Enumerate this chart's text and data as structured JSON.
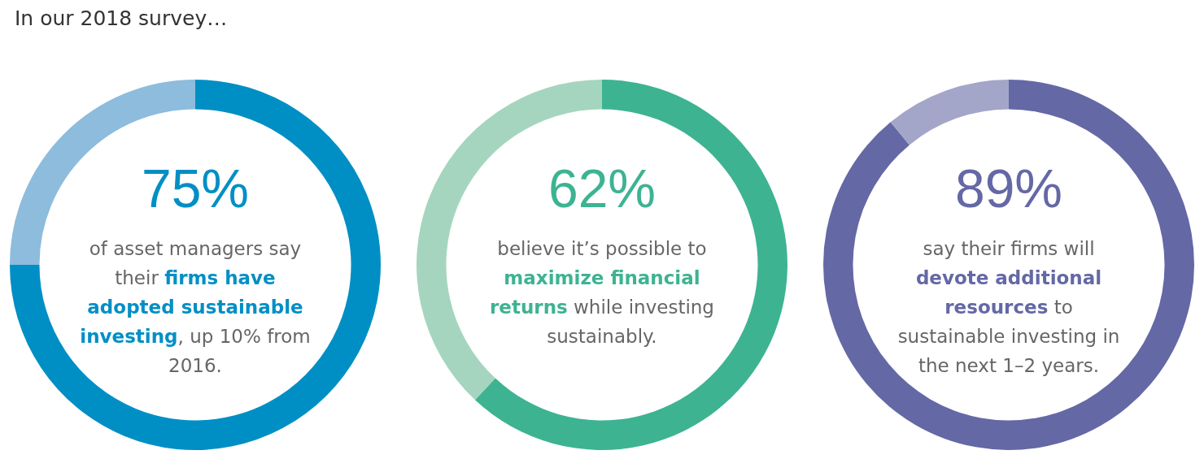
{
  "chart_data": [
    {
      "type": "donut",
      "title": "In our 2018 survey…",
      "categories": [
        null,
        null
      ],
      "values": [
        75,
        25
      ],
      "colors": [
        "#008fc5",
        "#8dbcdc"
      ],
      "value_labels": [
        "75%",
        null
      ],
      "annotations": [
        "of asset managers say their",
        "firms have adopted sustainable investing",
        ", up 10% from 2016."
      ]
    },
    {
      "type": "donut",
      "categories": [
        null,
        null
      ],
      "values": [
        62,
        38
      ],
      "colors": [
        "#3db392",
        "#a5d5bf"
      ],
      "value_labels": [
        "62%",
        null
      ],
      "annotations": [
        "believe it’s possible to",
        "maximize financial returns",
        "while investing sustainably."
      ]
    },
    {
      "type": "donut",
      "categories": [
        null,
        null
      ],
      "values": [
        89,
        11
      ],
      "colors": [
        "#6468a5",
        "#a3a6c8"
      ],
      "value_labels": [
        "89%",
        null
      ],
      "annotations": [
        "say their firms will",
        "devote additional resources",
        "to sustainable investing in the next 1–2 years."
      ]
    }
  ]
}
